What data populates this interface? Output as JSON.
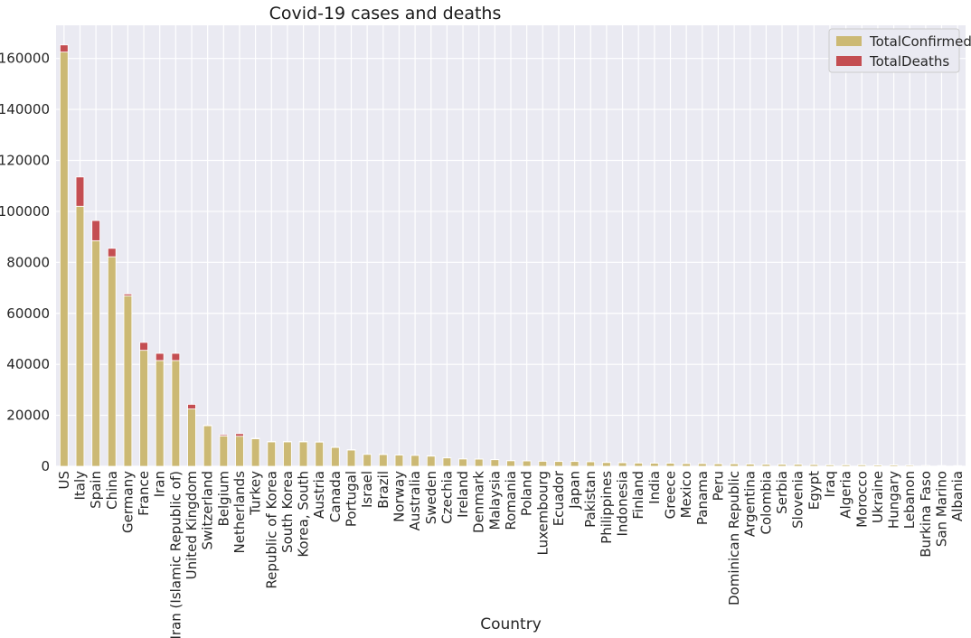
{
  "chart_data": {
    "type": "bar",
    "stacked": true,
    "title": "Covid-19 cases and deaths",
    "xlabel": "Country",
    "ylabel": "",
    "ylim": [
      0,
      173000
    ],
    "yticks": [
      0,
      20000,
      40000,
      60000,
      80000,
      100000,
      120000,
      140000,
      160000
    ],
    "grid": true,
    "legend_position": "top-right",
    "categories": [
      "US",
      "Italy",
      "Spain",
      "China",
      "Germany",
      "France",
      "Iran",
      "Iran (Islamic Republic of)",
      "United Kingdom",
      "Switzerland",
      "Belgium",
      "Netherlands",
      "Turkey",
      "Republic of Korea",
      "South Korea",
      "Korea, South",
      "Austria",
      "Canada",
      "Portugal",
      "Israel",
      "Brazil",
      "Norway",
      "Australia",
      "Sweden",
      "Czechia",
      "Ireland",
      "Denmark",
      "Malaysia",
      "Romania",
      "Poland",
      "Luxembourg",
      "Ecuador",
      "Japan",
      "Pakistan",
      "Philippines",
      "Indonesia",
      "Finland",
      "India",
      "Greece",
      "Mexico",
      "Panama",
      "Peru",
      "Dominican Republic",
      "Argentina",
      "Colombia",
      "Serbia",
      "Slovenia",
      "Egypt",
      "Iraq",
      "Algeria",
      "Morocco",
      "Ukraine",
      "Hungary",
      "Lebanon",
      "Burkina Faso",
      "San Marino",
      "Albania"
    ],
    "series": [
      {
        "name": "TotalConfirmed",
        "color": "#ccb974",
        "values": [
          162500,
          102000,
          88500,
          82200,
          66900,
          45500,
          41500,
          41500,
          22500,
          15900,
          11900,
          11800,
          10800,
          9600,
          9600,
          9600,
          9500,
          7400,
          6400,
          4700,
          4600,
          4400,
          4300,
          4000,
          3300,
          2900,
          2800,
          2600,
          2200,
          2100,
          2000,
          1900,
          1900,
          1800,
          1500,
          1400,
          1300,
          1200,
          1200,
          1100,
          1100,
          1000,
          1000,
          900,
          800,
          800,
          800,
          700,
          600,
          600,
          600,
          500,
          500,
          450,
          300,
          260,
          230
        ]
      },
      {
        "name": "TotalDeaths",
        "color": "#c44e52",
        "values": [
          2800,
          11500,
          7900,
          3300,
          700,
          3100,
          2800,
          2800,
          1800,
          300,
          500,
          1000,
          200,
          160,
          160,
          160,
          120,
          100,
          150,
          20,
          150,
          30,
          20,
          150,
          30,
          50,
          90,
          40,
          70,
          40,
          20,
          60,
          60,
          30,
          100,
          130,
          20,
          30,
          40,
          30,
          30,
          20,
          50,
          20,
          20,
          20,
          20,
          50,
          60,
          40,
          40,
          20,
          10,
          10,
          20,
          30,
          20
        ]
      }
    ]
  }
}
